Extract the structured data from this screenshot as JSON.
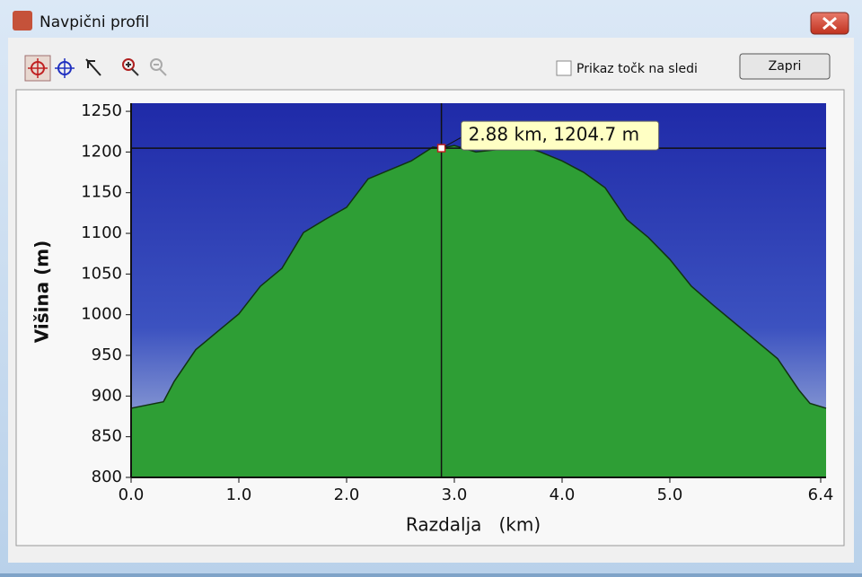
{
  "window": {
    "title": "Navpični profil"
  },
  "toolbar": {
    "checkbox_label": "Prikaz točk na sledi",
    "button": "Zapri"
  },
  "chart_data": {
    "type": "area",
    "x_label": "Razdalja   (km)",
    "y_label": "Višina (m)",
    "x": [
      0,
      0.3,
      0.4,
      0.6,
      0.8,
      1.0,
      1.2,
      1.4,
      1.6,
      1.8,
      2.0,
      2.2,
      2.4,
      2.6,
      2.8,
      2.88,
      3.0,
      3.2,
      3.4,
      3.6,
      3.8,
      4.0,
      4.2,
      4.4,
      4.6,
      4.8,
      5.0,
      5.2,
      5.4,
      5.6,
      5.8,
      6.0,
      6.2,
      6.3,
      6.45
    ],
    "values": [
      885,
      893,
      918,
      957,
      979,
      1001,
      1035,
      1057,
      1101,
      1117,
      1132,
      1167,
      1178,
      1189,
      1206,
      1204.7,
      1208,
      1200,
      1203,
      1209,
      1200,
      1189,
      1175,
      1156,
      1117,
      1095,
      1068,
      1035,
      1012,
      990,
      968,
      946,
      907,
      891,
      885
    ],
    "color": "#2e9e35",
    "xlim": [
      0,
      6.45
    ],
    "xticks": [
      {
        "value": 0,
        "label": "0.0"
      },
      {
        "value": 1,
        "label": "1.0"
      },
      {
        "value": 2,
        "label": "2.0"
      },
      {
        "value": 3,
        "label": "3.0"
      },
      {
        "value": 4,
        "label": "4.0"
      },
      {
        "value": 5,
        "label": "5.0"
      },
      6.4
    ],
    "ylim": [
      800,
      1260
    ],
    "yticks": [
      800,
      850,
      900,
      950,
      1000,
      1050,
      1100,
      1150,
      1200,
      1250
    ],
    "cursor": {
      "x": 2.88,
      "y": 1204.7,
      "label": "2.88 km, 1204.7 m"
    }
  }
}
